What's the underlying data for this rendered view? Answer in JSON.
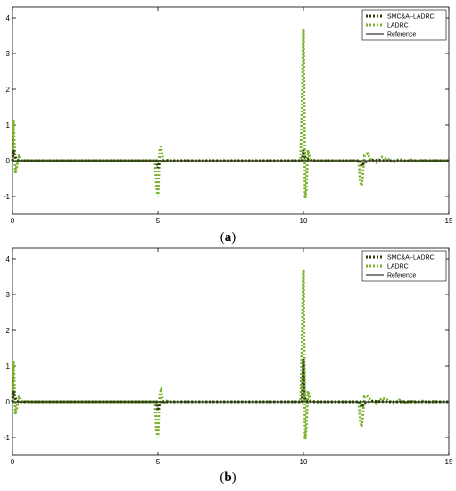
{
  "chart_data": [
    {
      "type": "line",
      "caption": {
        "open": "(",
        "letter": "a",
        "close": ")"
      },
      "xlim": [
        0,
        15
      ],
      "ylim": [
        -1.5,
        4.3
      ],
      "xticks": [
        0,
        5,
        10,
        15
      ],
      "yticks": [
        -1,
        0,
        1,
        2,
        3,
        4
      ],
      "grid": false,
      "legend_position": "top-right",
      "colors": {
        "smc": "#2f3d0c",
        "ladrc": "#7ab32d",
        "reference": "#000000"
      },
      "series": [
        {
          "name": "SMC&A−LADRC",
          "style": "dotted",
          "x": [
            0,
            0.05,
            0.1,
            0.15,
            0.2,
            0.3,
            0.5,
            1,
            4.95,
            5,
            5.05,
            5.1,
            5.2,
            5.3,
            9.95,
            10,
            10.05,
            10.1,
            10.2,
            10.3,
            11.95,
            12,
            12.1,
            12.3,
            12.6,
            13,
            15
          ],
          "y": [
            0,
            0.3,
            0.1,
            0.02,
            0,
            0,
            0,
            0,
            0,
            -0.2,
            -0.05,
            0.02,
            0,
            0,
            0,
            0.3,
            0.1,
            0.05,
            0.02,
            0,
            0,
            -0.15,
            -0.05,
            0.02,
            0.01,
            0,
            0
          ]
        },
        {
          "name": "LADRC",
          "style": "dotted",
          "x": [
            0,
            0.03,
            0.06,
            0.1,
            0.15,
            0.22,
            0.3,
            0.4,
            0.55,
            0.8,
            4.9,
            4.95,
            5,
            5.03,
            5.06,
            5.1,
            5.15,
            5.2,
            5.3,
            5.45,
            5.7,
            9.9,
            9.95,
            10,
            10.03,
            10.06,
            10.1,
            10.15,
            10.22,
            10.3,
            10.45,
            10.7,
            11.9,
            11.95,
            12,
            12.05,
            12.1,
            12.2,
            12.3,
            12.5,
            12.7,
            12.9,
            13.1,
            13.3,
            13.5,
            13.7,
            13.9,
            14.1,
            14.3,
            14.5,
            14.7,
            15
          ],
          "y": [
            0,
            1.15,
            0.6,
            -0.35,
            -0.15,
            0.1,
            -0.03,
            0.02,
            0,
            0,
            0,
            -0.7,
            -1.0,
            -0.3,
            0.3,
            0.4,
            0.15,
            -0.05,
            0.02,
            0,
            0,
            0,
            1.5,
            3.7,
            1.2,
            -1.05,
            -0.8,
            0.3,
            0.05,
            0.02,
            0,
            0,
            0,
            -0.55,
            -0.7,
            -0.3,
            0.15,
            0.2,
            0.05,
            -0.05,
            0.1,
            0.05,
            -0.05,
            0.05,
            -0.03,
            0.03,
            -0.02,
            0.02,
            -0.01,
            0.01,
            0,
            0
          ]
        },
        {
          "name": "Reference",
          "style": "solid",
          "x": [
            0,
            15
          ],
          "y": [
            0,
            0
          ]
        }
      ]
    },
    {
      "type": "line",
      "caption": {
        "open": "(",
        "letter": "b",
        "close": ")"
      },
      "xlim": [
        0,
        15
      ],
      "ylim": [
        -1.5,
        4.3
      ],
      "xticks": [
        0,
        5,
        10,
        15
      ],
      "yticks": [
        -1,
        0,
        1,
        2,
        3,
        4
      ],
      "grid": false,
      "legend_position": "top-right",
      "colors": {
        "smc": "#2f3d0c",
        "ladrc": "#7ab32d",
        "reference": "#000000"
      },
      "series": [
        {
          "name": "SMC&A−LADRC",
          "style": "dotted",
          "x": [
            0,
            0.05,
            0.1,
            0.15,
            0.2,
            0.3,
            0.5,
            1,
            4.95,
            5,
            5.05,
            5.1,
            5.2,
            5.3,
            9.95,
            10,
            10.03,
            10.06,
            10.1,
            10.2,
            10.3,
            11.95,
            12,
            12.1,
            12.3,
            12.6,
            13,
            15
          ],
          "y": [
            0,
            0.3,
            0.1,
            0.02,
            0,
            0,
            0,
            0,
            0,
            -0.25,
            -0.05,
            0.02,
            0,
            0,
            0,
            1.2,
            0.2,
            0.05,
            0.02,
            0.01,
            0,
            0,
            -0.15,
            -0.05,
            0.02,
            0.01,
            0,
            0
          ]
        },
        {
          "name": "LADRC",
          "style": "dotted",
          "x": [
            0,
            0.03,
            0.06,
            0.1,
            0.15,
            0.22,
            0.3,
            0.4,
            0.55,
            0.8,
            4.9,
            4.95,
            5,
            5.03,
            5.06,
            5.1,
            5.15,
            5.2,
            5.3,
            5.45,
            5.7,
            9.9,
            9.95,
            10,
            10.03,
            10.06,
            10.1,
            10.15,
            10.22,
            10.3,
            10.45,
            10.7,
            11.9,
            11.95,
            12,
            12.05,
            12.1,
            12.2,
            12.3,
            12.5,
            12.7,
            12.9,
            13.1,
            13.3,
            13.5,
            13.7,
            13.9,
            14.1,
            14.3,
            14.5,
            14.7,
            15
          ],
          "y": [
            0,
            1.15,
            0.6,
            -0.35,
            -0.15,
            0.1,
            -0.03,
            0.02,
            0,
            0,
            0,
            -0.8,
            -1.0,
            -0.3,
            0.2,
            0.3,
            0.1,
            -0.05,
            0.02,
            0,
            0,
            0,
            1.5,
            3.7,
            1.2,
            -1.05,
            -0.7,
            0.3,
            0.05,
            0.02,
            0,
            0,
            0,
            -0.5,
            -0.7,
            -0.3,
            0.15,
            0.15,
            0.05,
            -0.05,
            0.1,
            0.05,
            -0.05,
            0.05,
            -0.03,
            0.03,
            -0.02,
            0.02,
            -0.01,
            0.01,
            0,
            0
          ]
        },
        {
          "name": "Reference",
          "style": "solid",
          "x": [
            0,
            15
          ],
          "y": [
            0,
            0
          ]
        }
      ]
    }
  ]
}
